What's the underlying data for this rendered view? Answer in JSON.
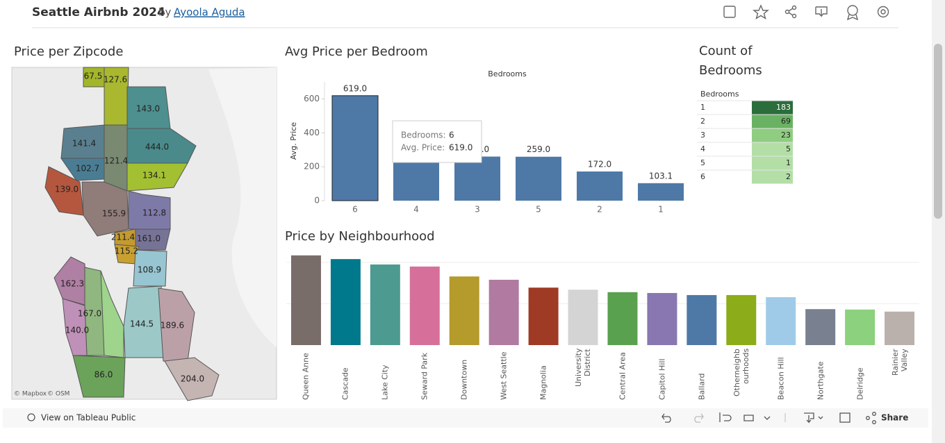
{
  "header": {
    "title": "Seattle Airbnb 2024",
    "by": "by",
    "author": "Ayoola Aguda"
  },
  "map": {
    "title": "Price per Zipcode",
    "labels": [
      "67.5",
      "127.6",
      "143.0",
      "141.4",
      "444.0",
      "102.7",
      "121.4",
      "134.1",
      "139.0",
      "155.9",
      "112.8",
      "211.4",
      "161.0",
      "115.2",
      "108.9",
      "162.3",
      "167.0",
      "140.0",
      "144.5",
      "189.6",
      "86.0",
      "204.0"
    ],
    "attribution": [
      "© Mapbox",
      "© OSM"
    ]
  },
  "chart_data": [
    {
      "type": "bar",
      "title": "Avg Price per Bedroom",
      "x_label": "Bedrooms",
      "y_label": "Avg. Price",
      "categories": [
        "6",
        "4",
        "3",
        "5",
        "2",
        "1"
      ],
      "values": [
        619.0,
        265.0,
        260.0,
        259.0,
        172.0,
        103.1
      ],
      "value_labels": [
        "619.0",
        "265.0",
        "260.0",
        "259.0",
        "172.0",
        "103.1"
      ],
      "color": "#4e79a7",
      "ylim": [
        0,
        700
      ],
      "yticks": [
        0,
        200,
        400,
        600
      ],
      "tooltip": [
        {
          "label": "Bedrooms:",
          "value": "6"
        },
        {
          "label": "Avg. Price:",
          "value": "619.0"
        }
      ]
    },
    {
      "type": "table",
      "title": "Count of Bedrooms",
      "header": "Bedrooms",
      "categories": [
        "1",
        "2",
        "3",
        "4",
        "5",
        "6"
      ],
      "values": [
        183,
        69,
        23,
        5,
        1,
        2
      ],
      "colors": [
        "#2b6d3b",
        "#6ab263",
        "#8fcd80",
        "#b3dfa6",
        "#b3dfa6",
        "#b3dfa6"
      ]
    },
    {
      "type": "bar",
      "title": "Price by Neighbourhood",
      "categories": [
        "Queen Anne",
        "Cascade",
        "Lake City",
        "Seward Park",
        "Downtown",
        "West Seattle",
        "Magnolia",
        "University District",
        "Central Area",
        "Capitol Hill",
        "Ballard",
        "Otherneighbourhoods",
        "Beacon Hill",
        "Northgate",
        "Delridge",
        "Rainier Valley"
      ],
      "values": [
        217,
        208,
        195,
        190,
        166,
        158,
        139,
        134,
        128,
        126,
        121,
        121,
        116,
        87,
        86,
        81
      ],
      "colors": [
        "#796d6a",
        "#00798c",
        "#4d9a91",
        "#d6709a",
        "#b59a2c",
        "#b07aa1",
        "#9f3a25",
        "#d4d4d4",
        "#59a14f",
        "#8877b0",
        "#4e79a7",
        "#8cac1a",
        "#a0cbe8",
        "#79808f",
        "#8cd17d",
        "#bab0ac"
      ],
      "ylim": [
        0,
        220
      ],
      "yticks": [
        100,
        200
      ],
      "grid": true
    }
  ],
  "footer": {
    "view": "View on Tableau Public",
    "share": "Share"
  }
}
